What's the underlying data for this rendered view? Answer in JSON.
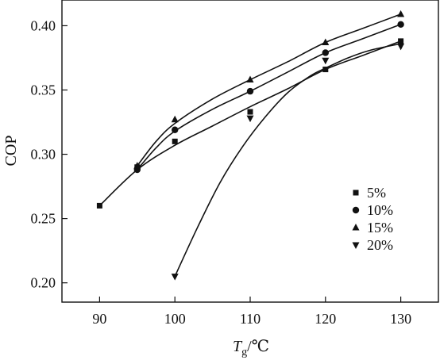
{
  "chart_data": {
    "type": "scatter",
    "xlabel": {
      "main": "T",
      "sub": "g",
      "unit": "/℃"
    },
    "ylabel": "COP",
    "xlim": [
      85,
      135
    ],
    "ylim": [
      0.185,
      0.42
    ],
    "xticks": [
      90,
      100,
      110,
      120,
      130
    ],
    "yticks": [
      0.2,
      0.25,
      0.3,
      0.35,
      0.4
    ],
    "ytick_labels": [
      "0.20",
      "0.25",
      "0.30",
      "0.35",
      "0.40"
    ],
    "legend_position": "right",
    "grid": false,
    "series": [
      {
        "name": "5%",
        "marker": "square",
        "x": [
          90,
          95,
          100,
          110,
          120,
          130
        ],
        "y": [
          0.26,
          0.29,
          0.31,
          0.333,
          0.366,
          0.388
        ],
        "curve": {
          "x": [
            90,
            95,
            100,
            105,
            110,
            115,
            120,
            125,
            130
          ],
          "y": [
            0.26,
            0.288,
            0.307,
            0.322,
            0.337,
            0.351,
            0.366,
            0.377,
            0.388
          ]
        }
      },
      {
        "name": "10%",
        "marker": "circle",
        "x": [
          95,
          100,
          110,
          120,
          130
        ],
        "y": [
          0.288,
          0.319,
          0.349,
          0.379,
          0.401
        ],
        "curve": {
          "x": [
            95,
            97.5,
            100,
            105,
            110,
            115,
            120,
            125,
            130
          ],
          "y": [
            0.288,
            0.305,
            0.318,
            0.335,
            0.349,
            0.364,
            0.379,
            0.39,
            0.401
          ]
        }
      },
      {
        "name": "15%",
        "marker": "triangle-up",
        "x": [
          95,
          100,
          110,
          120,
          130
        ],
        "y": [
          0.291,
          0.327,
          0.358,
          0.387,
          0.409
        ],
        "curve": {
          "x": [
            95,
            97.5,
            100,
            105,
            110,
            115,
            120,
            125,
            130
          ],
          "y": [
            0.291,
            0.31,
            0.324,
            0.343,
            0.358,
            0.372,
            0.387,
            0.398,
            0.409
          ]
        }
      },
      {
        "name": "20%",
        "marker": "triangle-down",
        "x": [
          100,
          110,
          120,
          130
        ],
        "y": [
          0.205,
          0.328,
          0.373,
          0.384
        ],
        "curve": {
          "x": [
            100,
            103,
            106,
            109,
            112,
            115,
            118,
            120,
            123,
            126,
            130
          ],
          "y": [
            0.205,
            0.243,
            0.278,
            0.306,
            0.329,
            0.348,
            0.361,
            0.367,
            0.375,
            0.381,
            0.386
          ]
        }
      }
    ]
  }
}
